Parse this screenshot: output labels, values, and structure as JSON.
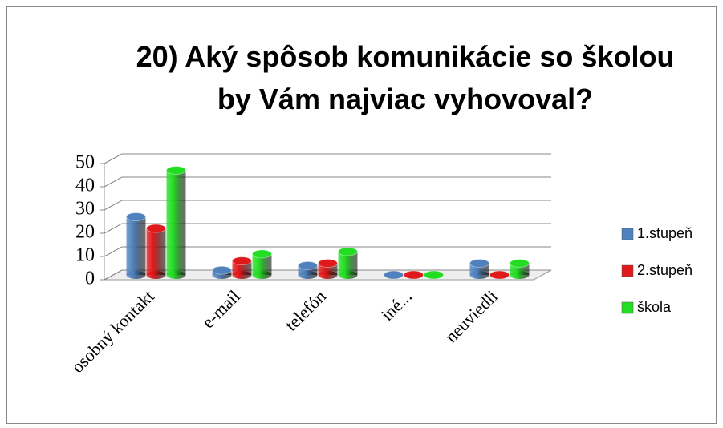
{
  "chart_data": {
    "type": "bar3d",
    "title": "20) Aký spôsob komunikácie so školou by Vám najviac vyhovoval?",
    "categories": [
      "osobný kontakt",
      "e-mail",
      "telefón",
      "iné...",
      "neuviedli"
    ],
    "series": [
      {
        "name": "1.stupeň",
        "color": "#4f81bd",
        "values": [
          25,
          2,
          4,
          0,
          5
        ]
      },
      {
        "name": "2.stupeň",
        "color": "#e0191b",
        "values": [
          20,
          6,
          5,
          0,
          0
        ]
      },
      {
        "name": "škola",
        "color": "#22dd22",
        "values": [
          45,
          9,
          10,
          0,
          5
        ]
      }
    ],
    "ylim": [
      0,
      50
    ],
    "yticks": [
      0,
      10,
      20,
      30,
      40,
      50
    ],
    "grid": true,
    "legend": "right"
  }
}
